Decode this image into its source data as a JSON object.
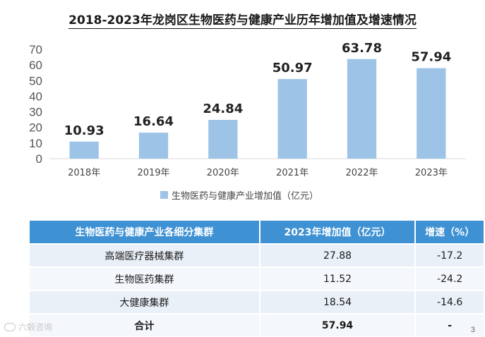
{
  "title": "2018-2023年龙岗区生物医药与健康产业历年增加值及增速情况",
  "chart_data": {
    "type": "bar",
    "categories": [
      "2018年",
      "2019年",
      "2020年",
      "2021年",
      "2022年",
      "2023年"
    ],
    "series": [
      {
        "name": "生物医药与健康产业增加值（亿元）",
        "values": [
          10.93,
          16.64,
          24.84,
          50.97,
          63.78,
          57.94
        ]
      }
    ],
    "data_labels": [
      "10.93",
      "16.64",
      "24.84",
      "50.97",
      "63.78",
      "57.94"
    ],
    "yticks": [
      "0",
      "10",
      "20",
      "30",
      "40",
      "50",
      "60",
      "70"
    ],
    "ylim": [
      0,
      70
    ],
    "grid": false,
    "legend_position": "bottom",
    "bar_color": "#9dc3e6"
  },
  "table": {
    "headers": [
      "生物医药与健康产业各细分集群",
      "2023年增加值（亿元）",
      "增速（%）"
    ],
    "rows": [
      [
        "高端医疗器械集群",
        "27.88",
        "-17.2"
      ],
      [
        "生物医药集群",
        "11.52",
        "-24.2"
      ],
      [
        "大健康集群",
        "18.54",
        "-14.6"
      ],
      [
        "合计",
        "57.94",
        "-"
      ]
    ]
  },
  "watermark": "六毂咨询",
  "page_number": "3",
  "colors": {
    "header_bg": "#3e91d3",
    "row_bg": "#eaf0f8"
  }
}
